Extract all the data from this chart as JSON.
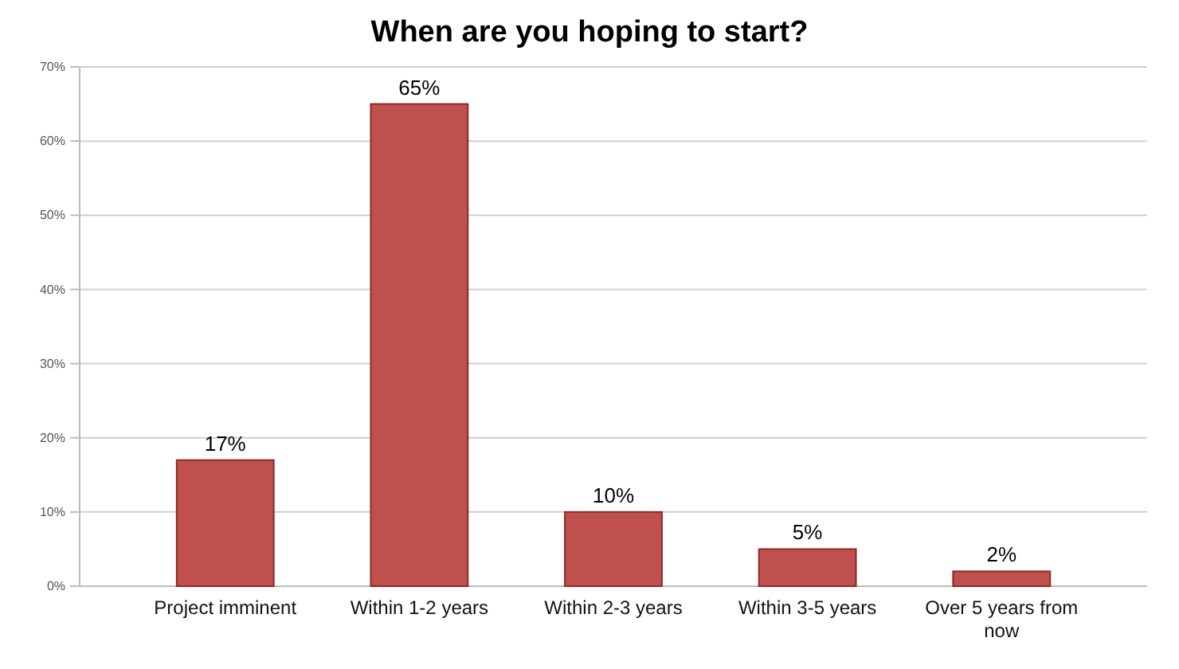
{
  "chart_data": {
    "type": "bar",
    "title": "When are you hoping to start?",
    "categories": [
      "Project imminent",
      "Within 1-2 years",
      "Within 2-3 years",
      "Within 3-5 years",
      "Over 5 years from now"
    ],
    "values": [
      17,
      65,
      10,
      5,
      2
    ],
    "value_labels": [
      "17%",
      "65%",
      "10%",
      "5%",
      "2%"
    ],
    "color": "#c0504d",
    "ylim": [
      0,
      70
    ],
    "yticks": [
      {
        "value": 0,
        "label": "0%"
      },
      {
        "value": 10,
        "label": "10%"
      },
      {
        "value": 20,
        "label": "20%"
      },
      {
        "value": 30,
        "label": "30%"
      },
      {
        "value": 40,
        "label": "40%"
      },
      {
        "value": 50,
        "label": "50%"
      },
      {
        "value": 60,
        "label": "60%"
      },
      {
        "value": 70,
        "label": "70%"
      }
    ],
    "grid": true
  }
}
